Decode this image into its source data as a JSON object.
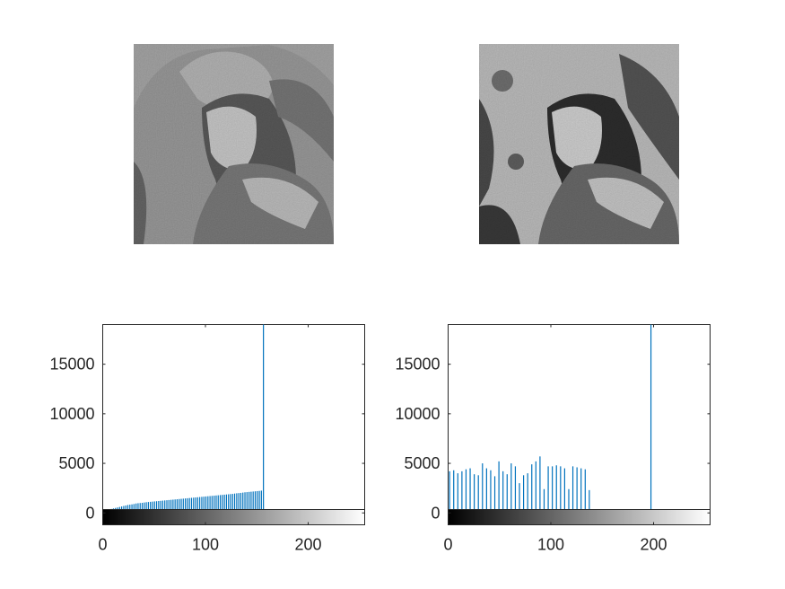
{
  "figure": {
    "images": [
      {
        "name": "original-portrait",
        "description_visible": false
      },
      {
        "name": "processed-portrait",
        "description_visible": false
      }
    ]
  },
  "chart_data": [
    {
      "type": "bar",
      "title": "",
      "xlabel": "",
      "ylabel": "",
      "xlim": [
        0,
        255
      ],
      "ylim": [
        -1200,
        19000
      ],
      "xticks": [
        0,
        100,
        200
      ],
      "yticks": [
        0,
        5000,
        10000,
        15000
      ],
      "grid": false,
      "colorbar": "grayscale 0-255",
      "bar_color": "#0072BD",
      "series": [
        {
          "x": [
            0,
            2,
            4,
            6,
            8,
            10,
            12,
            14,
            16,
            18,
            20,
            22,
            24,
            26,
            28,
            30,
            32,
            34,
            36,
            38,
            40,
            42,
            44,
            46,
            48,
            50,
            52,
            54,
            56,
            58,
            60,
            62,
            64,
            66,
            68,
            70,
            72,
            74,
            76,
            78,
            80,
            82,
            84,
            86,
            88,
            90,
            92,
            94,
            96,
            98,
            100,
            102,
            104,
            106,
            108,
            110,
            112,
            114,
            116,
            118,
            120,
            122,
            124,
            126,
            128,
            130,
            132,
            134,
            136,
            138,
            140,
            142,
            144,
            146,
            148,
            150,
            152,
            154,
            156
          ],
          "values": [
            150,
            250,
            300,
            350,
            400,
            450,
            500,
            550,
            600,
            650,
            700,
            750,
            800,
            830,
            860,
            900,
            950,
            980,
            1000,
            1020,
            1050,
            1080,
            1100,
            1120,
            1140,
            1160,
            1180,
            1200,
            1220,
            1240,
            1260,
            1280,
            1300,
            1320,
            1340,
            1360,
            1380,
            1400,
            1420,
            1440,
            1460,
            1480,
            1500,
            1520,
            1540,
            1560,
            1580,
            1600,
            1620,
            1640,
            1660,
            1680,
            1700,
            1720,
            1740,
            1760,
            1780,
            1800,
            1820,
            1840,
            1860,
            1880,
            1900,
            1920,
            1950,
            1980,
            2000,
            2020,
            2050,
            2080,
            2100,
            2120,
            2140,
            2160,
            2180,
            2200,
            2220,
            2250,
            19000
          ]
        }
      ]
    },
    {
      "type": "bar",
      "title": "",
      "xlabel": "",
      "ylabel": "",
      "xlim": [
        0,
        255
      ],
      "ylim": [
        -1200,
        19000
      ],
      "xticks": [
        0,
        100,
        200
      ],
      "yticks": [
        0,
        5000,
        10000,
        15000
      ],
      "grid": false,
      "colorbar": "grayscale 0-255",
      "bar_color": "#0072BD",
      "series": [
        {
          "x": [
            1,
            5,
            9,
            13,
            17,
            21,
            25,
            29,
            33,
            37,
            41,
            45,
            49,
            53,
            57,
            61,
            65,
            69,
            73,
            77,
            81,
            85,
            89,
            93,
            97,
            101,
            105,
            109,
            113,
            117,
            121,
            125,
            129,
            133,
            137,
            197
          ],
          "values": [
            4200,
            4300,
            4000,
            4200,
            4400,
            4500,
            3900,
            3800,
            5000,
            4500,
            4300,
            3700,
            5200,
            4200,
            3900,
            5000,
            4700,
            3000,
            3800,
            4000,
            4900,
            5200,
            5700,
            2400,
            4700,
            4700,
            4800,
            4700,
            4500,
            2400,
            4700,
            4600,
            4500,
            4400,
            2300,
            19000
          ]
        }
      ]
    }
  ]
}
